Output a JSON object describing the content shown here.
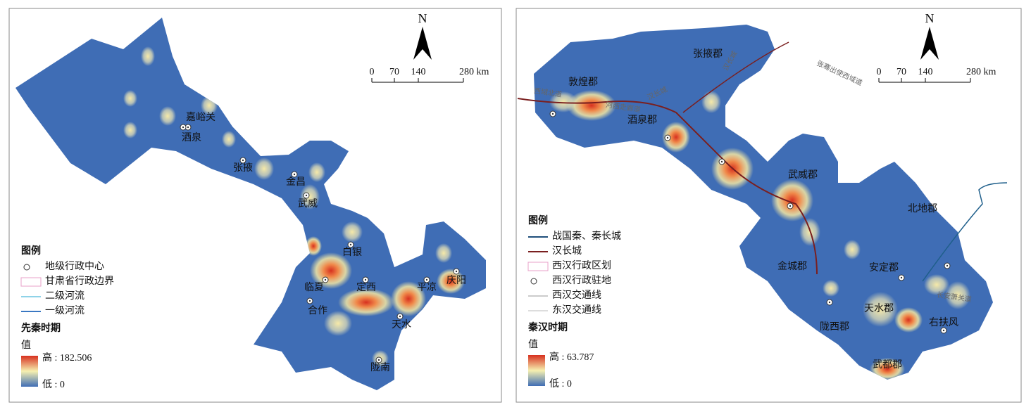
{
  "panels": [
    {
      "north": "N",
      "scale": [
        "0",
        "70",
        "140",
        "280 km"
      ],
      "places": [
        "嘉峪关",
        "酒泉",
        "张掖",
        "金昌",
        "武威",
        "白银",
        "临夏",
        "定西",
        "平凉",
        "庆阳",
        "合作",
        "天水",
        "陇南"
      ],
      "legend": {
        "title": "图例",
        "items": [
          "地级行政中心",
          "甘肃省行政边界",
          "二级河流",
          "一级河流"
        ],
        "period": "先秦时期",
        "value_title": "值",
        "high": "高 : 182.506",
        "low": "低 : 0"
      }
    },
    {
      "north": "N",
      "scale": [
        "0",
        "70",
        "140",
        "280 km"
      ],
      "places": [
        "张掖郡",
        "敦煌郡",
        "酒泉郡",
        "武威郡",
        "北地郡",
        "金城郡",
        "安定郡",
        "天水郡",
        "陇西郡",
        "右扶风",
        "武都郡"
      ],
      "routes": [
        "西域北道",
        "河西走廊道",
        "汉长城",
        "汉长城",
        "张骞出使西域道",
        "长安萧关道"
      ],
      "legend": {
        "title": "图例",
        "items": [
          "战国秦、秦长城",
          "汉长城",
          "西汉行政区划",
          "西汉行政驻地",
          "西汉交通线",
          "东汉交通线"
        ],
        "period": "秦汉时期",
        "value_title": "值",
        "high": "高 : 63.787",
        "low": "低 : 0"
      }
    }
  ]
}
